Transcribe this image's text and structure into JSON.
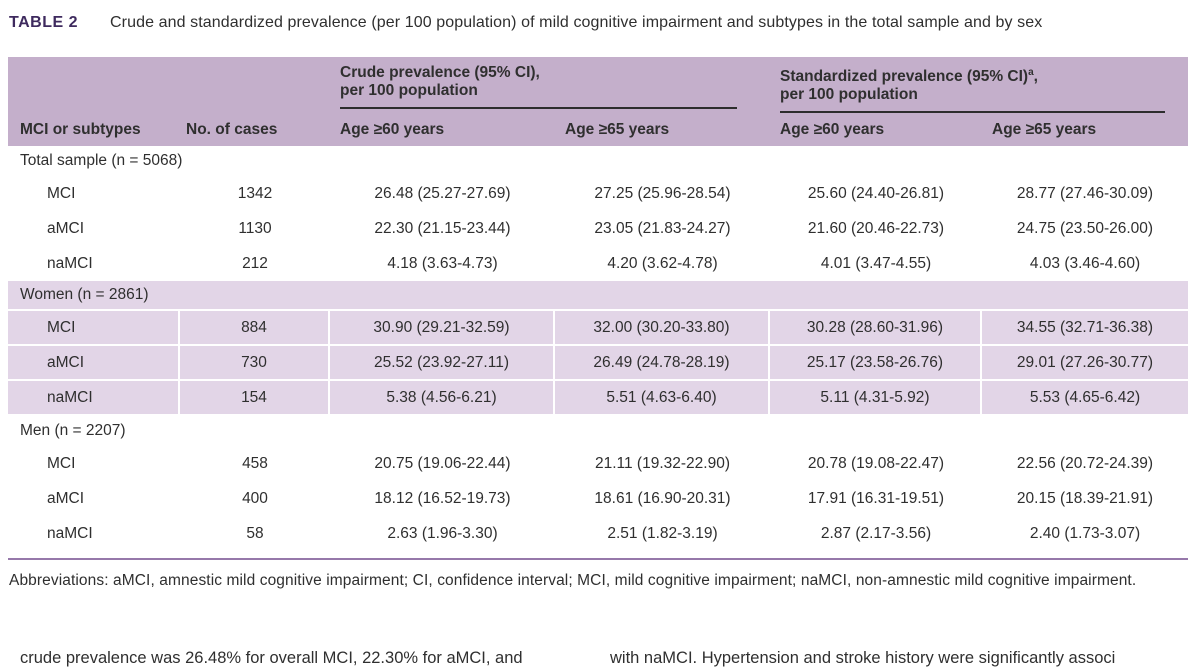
{
  "title": {
    "tag": "TABLE 2",
    "text": "Crude and standardized prevalence (per 100 population) of mild cognitive impairment and subtypes in the total sample and by sex"
  },
  "table": {
    "group_headers": {
      "crude": {
        "line1": "Crude prevalence (95% CI),",
        "line2": "per 100 population"
      },
      "standardized": {
        "line1_pre": "Standardized prevalence (95% CI)",
        "line1_sup": "a",
        "line1_post": ",",
        "line2": "per 100 population"
      }
    },
    "columns": [
      "MCI or subtypes",
      "No. of cases",
      "Age ≥60 years",
      "Age ≥65 years",
      "Age ≥60 years",
      "Age ≥65 years"
    ],
    "sections": [
      {
        "label": "Total sample (n = 5068)",
        "highlight": false,
        "rows": [
          {
            "cells": [
              "MCI",
              "1342",
              "26.48 (25.27-27.69)",
              "27.25 (25.96-28.54)",
              "25.60 (24.40-26.81)",
              "28.77 (27.46-30.09)"
            ]
          },
          {
            "cells": [
              "aMCI",
              "1130",
              "22.30 (21.15-23.44)",
              "23.05 (21.83-24.27)",
              "21.60 (20.46-22.73)",
              "24.75 (23.50-26.00)"
            ]
          },
          {
            "cells": [
              "naMCI",
              "212",
              "4.18 (3.63-4.73)",
              "4.20 (3.62-4.78)",
              "4.01 (3.47-4.55)",
              "4.03 (3.46-4.60)"
            ]
          }
        ]
      },
      {
        "label": "Women (n = 2861)",
        "highlight": true,
        "rows": [
          {
            "cells": [
              "MCI",
              "884",
              "30.90 (29.21-32.59)",
              "32.00 (30.20-33.80)",
              "30.28 (28.60-31.96)",
              "34.55 (32.71-36.38)"
            ]
          },
          {
            "cells": [
              "aMCI",
              "730",
              "25.52 (23.92-27.11)",
              "26.49 (24.78-28.19)",
              "25.17 (23.58-26.76)",
              "29.01 (27.26-30.77)"
            ]
          },
          {
            "cells": [
              "naMCI",
              "154",
              "5.38 (4.56-6.21)",
              "5.51 (4.63-6.40)",
              "5.11 (4.31-5.92)",
              "5.53 (4.65-6.42)"
            ]
          }
        ]
      },
      {
        "label": "Men (n = 2207)",
        "highlight": false,
        "rows": [
          {
            "cells": [
              "MCI",
              "458",
              "20.75 (19.06-22.44)",
              "21.11 (19.32-22.90)",
              "20.78 (19.08-22.47)",
              "22.56 (20.72-24.39)"
            ]
          },
          {
            "cells": [
              "aMCI",
              "400",
              "18.12 (16.52-19.73)",
              "18.61 (16.90-20.31)",
              "17.91 (16.31-19.51)",
              "20.15 (18.39-21.91)"
            ]
          },
          {
            "cells": [
              "naMCI",
              "58",
              "2.63 (1.96-3.30)",
              "2.51 (1.82-3.19)",
              "2.87 (2.17-3.56)",
              "2.40 (1.73-3.07)"
            ]
          }
        ]
      }
    ]
  },
  "footnote": "Abbreviations: aMCI, amnestic mild cognitive impairment; CI, confidence interval; MCI, mild cognitive impairment; naMCI, non-amnestic mild cognitive impairment.",
  "body_text": {
    "left_fragment": "crude prevalence was 26.48% for overall MCI, 22.30% for aMCI, and",
    "right_fragment": "with naMCI. Hypertension and stroke history were significantly associ"
  },
  "colors": {
    "header_band": "#c4afcb",
    "highlight_band": "#e2d5e7",
    "title_accent": "#3e2a5e",
    "group_rule": "#2d2d2d",
    "bottom_rule": "#9678aa",
    "text": "#2f2f2f"
  }
}
